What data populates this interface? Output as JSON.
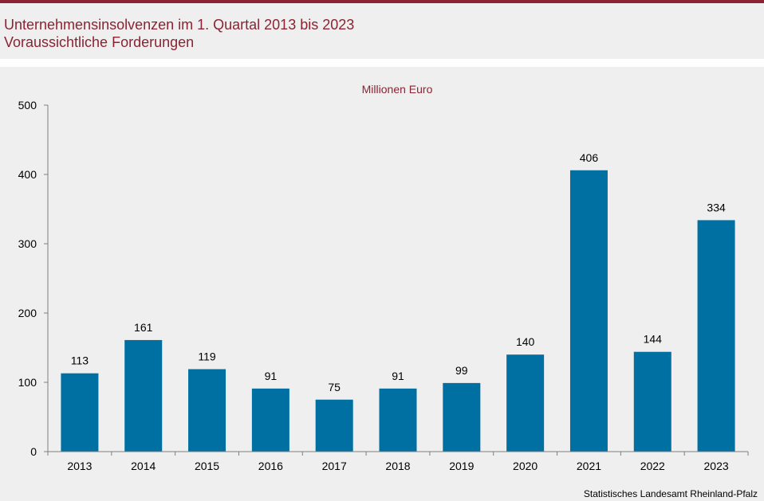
{
  "header": {
    "title": "Unternehmensinsolvenzen im 1. Quartal 2013 bis 2023",
    "subtitle": "Voraussichtliche Forderungen"
  },
  "colors": {
    "accent": "#8b2332",
    "bar": "#0070a3",
    "background": "#efefef"
  },
  "chart_data": {
    "type": "bar",
    "unit_label": "Millionen  Euro",
    "categories": [
      "2013",
      "2014",
      "2015",
      "2016",
      "2017",
      "2018",
      "2019",
      "2020",
      "2021",
      "2022",
      "2023"
    ],
    "values": [
      113,
      161,
      119,
      91,
      75,
      91,
      99,
      140,
      406,
      144,
      334
    ],
    "ylim": [
      0,
      500
    ],
    "yticks": [
      0,
      100,
      200,
      300,
      400,
      500
    ],
    "grid": false
  },
  "source": "Statistisches Landesamt  Rheinland-Pfalz"
}
